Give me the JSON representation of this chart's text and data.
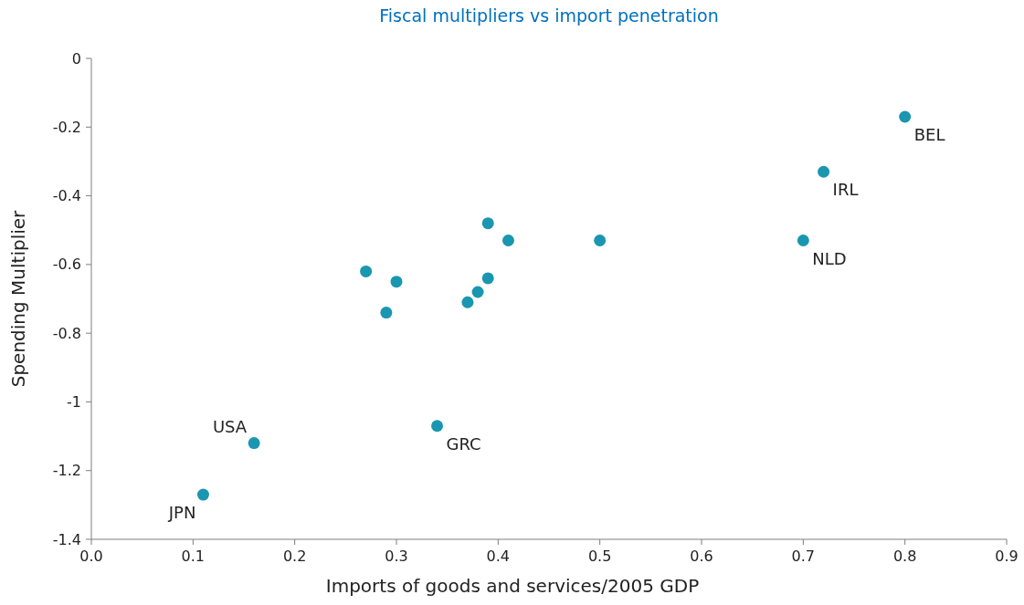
{
  "chart_data": {
    "type": "scatter",
    "title": "Fiscal multipliers vs import penetration",
    "xlabel": "Imports of goods and services/2005 GDP",
    "ylabel": "Spending Multiplier",
    "x": [
      0.8,
      0.72,
      0.7,
      0.5,
      0.41,
      0.39,
      0.39,
      0.38,
      0.37,
      0.3,
      0.27,
      0.29,
      0.34,
      0.16,
      0.11
    ],
    "series": [
      {
        "color": "#1a96b0",
        "values": [
          -0.17,
          -0.33,
          -0.53,
          -0.53,
          -0.53,
          -0.48,
          -0.64,
          -0.68,
          -0.71,
          -0.65,
          -0.62,
          -0.74,
          -1.07,
          -1.12,
          -1.27
        ]
      }
    ],
    "xlim": [
      0,
      0.9
    ],
    "ylim": [
      -1.4,
      0
    ],
    "xticks": [
      {
        "value": 0,
        "label": "0.0"
      },
      0.1,
      0.2,
      0.3,
      0.4,
      0.5,
      0.6,
      0.7,
      0.8,
      0.9
    ],
    "yticks": [
      0,
      -0.2,
      -0.4,
      -0.6,
      -0.8,
      -1,
      -1.2,
      -1.4
    ],
    "annotations": [
      {
        "text": "BEL",
        "x": 0.8,
        "y": -0.17
      },
      {
        "text": "IRL",
        "x": 0.72,
        "y": -0.33
      },
      {
        "text": "NLD",
        "x": 0.7,
        "y": -0.53
      },
      {
        "text": "GRC",
        "x": 0.34,
        "y": -1.07
      },
      {
        "text": "USA",
        "x": 0.16,
        "y": -1.12
      },
      {
        "text": "JPN",
        "x": 0.11,
        "y": -1.27
      }
    ],
    "marker": "circle",
    "grid": false
  }
}
